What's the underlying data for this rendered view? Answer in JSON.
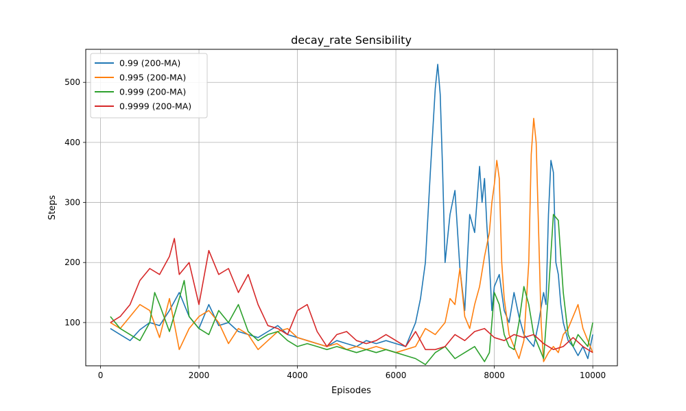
{
  "chart_data": {
    "type": "line",
    "title": "decay_rate Sensibility",
    "xlabel": "Episodes",
    "ylabel": "Steps",
    "xlim": [
      -300,
      10500
    ],
    "ylim": [
      28,
      555
    ],
    "xticks": [
      0,
      2000,
      4000,
      6000,
      8000,
      10000
    ],
    "yticks": [
      100,
      200,
      300,
      400,
      500
    ],
    "grid": true,
    "legend_position": "top-left",
    "series": [
      {
        "name": "0.99 (200-MA)",
        "color": "#1f77b4",
        "x": [
          200,
          400,
          600,
          800,
          1000,
          1200,
          1400,
          1600,
          1800,
          2000,
          2200,
          2400,
          2600,
          2800,
          3000,
          3200,
          3400,
          3600,
          3800,
          4000,
          4200,
          4400,
          4600,
          4800,
          5000,
          5200,
          5400,
          5600,
          5800,
          6000,
          6200,
          6300,
          6400,
          6500,
          6600,
          6700,
          6800,
          6850,
          6900,
          6950,
          7000,
          7100,
          7200,
          7300,
          7400,
          7500,
          7600,
          7700,
          7750,
          7800,
          7850,
          7900,
          7950,
          8000,
          8100,
          8200,
          8300,
          8400,
          8500,
          8600,
          8700,
          8800,
          8900,
          9000,
          9050,
          9100,
          9150,
          9200,
          9250,
          9300,
          9350,
          9400,
          9500,
          9600,
          9700,
          9800,
          9900,
          10000
        ],
        "values": [
          90,
          80,
          70,
          88,
          100,
          95,
          120,
          150,
          110,
          90,
          130,
          95,
          100,
          85,
          80,
          75,
          85,
          95,
          80,
          75,
          70,
          65,
          60,
          70,
          65,
          60,
          70,
          65,
          70,
          65,
          60,
          80,
          100,
          140,
          200,
          350,
          490,
          530,
          480,
          350,
          200,
          280,
          320,
          190,
          120,
          280,
          250,
          360,
          300,
          340,
          260,
          200,
          120,
          160,
          180,
          120,
          100,
          150,
          110,
          80,
          70,
          60,
          100,
          150,
          130,
          280,
          370,
          350,
          200,
          180,
          130,
          100,
          70,
          60,
          45,
          60,
          40,
          80
        ]
      },
      {
        "name": "0.995 (200-MA)",
        "color": "#ff7f0e",
        "x": [
          200,
          400,
          600,
          800,
          1000,
          1200,
          1400,
          1600,
          1800,
          2000,
          2200,
          2400,
          2600,
          2800,
          3000,
          3200,
          3400,
          3600,
          3800,
          4000,
          4200,
          4400,
          4600,
          4800,
          5000,
          5200,
          5400,
          5600,
          5800,
          6000,
          6200,
          6400,
          6600,
          6800,
          7000,
          7100,
          7200,
          7300,
          7400,
          7500,
          7600,
          7700,
          7800,
          7900,
          7950,
          8000,
          8050,
          8100,
          8150,
          8200,
          8300,
          8400,
          8500,
          8600,
          8700,
          8750,
          8800,
          8850,
          8900,
          8950,
          9000,
          9100,
          9200,
          9300,
          9400,
          9500,
          9600,
          9700,
          9800,
          9900,
          10000
        ],
        "values": [
          100,
          90,
          110,
          130,
          120,
          75,
          140,
          55,
          90,
          110,
          120,
          100,
          65,
          90,
          80,
          55,
          70,
          85,
          90,
          75,
          70,
          65,
          60,
          65,
          55,
          60,
          55,
          60,
          55,
          50,
          55,
          60,
          90,
          80,
          100,
          140,
          130,
          190,
          110,
          90,
          130,
          160,
          210,
          250,
          300,
          330,
          370,
          340,
          200,
          140,
          80,
          60,
          40,
          70,
          200,
          380,
          440,
          400,
          250,
          100,
          35,
          50,
          60,
          50,
          80,
          90,
          110,
          130,
          90,
          70,
          50
        ]
      },
      {
        "name": "0.999 (200-MA)",
        "color": "#2ca02c",
        "x": [
          200,
          400,
          600,
          800,
          1000,
          1100,
          1200,
          1400,
          1600,
          1700,
          1800,
          2000,
          2200,
          2400,
          2600,
          2800,
          3000,
          3200,
          3400,
          3600,
          3800,
          4000,
          4200,
          4400,
          4600,
          4800,
          5000,
          5200,
          5400,
          5600,
          5800,
          6000,
          6200,
          6400,
          6600,
          6800,
          7000,
          7200,
          7400,
          7600,
          7800,
          7900,
          8000,
          8100,
          8200,
          8300,
          8400,
          8500,
          8600,
          8700,
          8800,
          8900,
          9000,
          9100,
          9200,
          9300,
          9400,
          9500,
          9600,
          9700,
          9800,
          9900,
          10000
        ],
        "values": [
          110,
          90,
          80,
          70,
          100,
          150,
          130,
          85,
          140,
          170,
          110,
          90,
          80,
          120,
          100,
          130,
          85,
          70,
          80,
          85,
          70,
          60,
          65,
          60,
          55,
          60,
          55,
          50,
          55,
          50,
          55,
          50,
          45,
          40,
          30,
          50,
          60,
          40,
          50,
          60,
          35,
          50,
          150,
          130,
          80,
          60,
          55,
          100,
          160,
          130,
          80,
          60,
          40,
          150,
          280,
          270,
          150,
          80,
          60,
          80,
          70,
          60,
          100
        ]
      },
      {
        "name": "0.9999 (200-MA)",
        "color": "#d62728",
        "x": [
          200,
          400,
          600,
          800,
          1000,
          1200,
          1400,
          1500,
          1600,
          1800,
          2000,
          2200,
          2400,
          2600,
          2800,
          3000,
          3200,
          3400,
          3600,
          3800,
          4000,
          4200,
          4400,
          4600,
          4800,
          5000,
          5200,
          5400,
          5600,
          5800,
          6000,
          6200,
          6400,
          6600,
          6800,
          7000,
          7200,
          7400,
          7600,
          7800,
          8000,
          8200,
          8400,
          8600,
          8800,
          9000,
          9200,
          9400,
          9600,
          9800,
          10000
        ],
        "values": [
          100,
          110,
          130,
          170,
          190,
          180,
          210,
          240,
          180,
          200,
          130,
          220,
          180,
          190,
          150,
          180,
          130,
          95,
          90,
          80,
          120,
          130,
          85,
          60,
          80,
          85,
          70,
          65,
          70,
          80,
          70,
          60,
          85,
          55,
          55,
          60,
          80,
          70,
          85,
          90,
          75,
          70,
          80,
          75,
          80,
          65,
          55,
          60,
          75,
          60,
          50
        ]
      }
    ]
  }
}
